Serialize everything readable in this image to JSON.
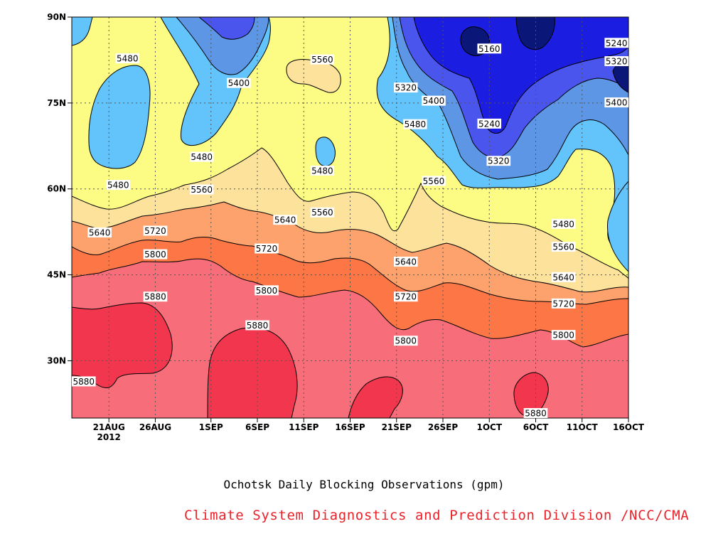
{
  "chart_data": {
    "type": "heatmap",
    "title": "Ochotsk Daily Blocking Observations (gpm)",
    "source": "Climate System Diagnostics and Prediction Division /NCC/CMA",
    "x_ticks": [
      "21AUG",
      "26AUG",
      "1SEP",
      "6SEP",
      "11SEP",
      "16SEP",
      "21SEP",
      "26SEP",
      "1OCT",
      "6OCT",
      "11OCT",
      "16OCT"
    ],
    "x_year": "2012",
    "y_ticks": [
      "30N",
      "45N",
      "60N",
      "75N",
      "90N"
    ],
    "x_range": [
      "2012-08-17",
      "2012-10-16"
    ],
    "y_range": [
      20,
      90
    ],
    "grid": true,
    "levels": [
      5160,
      5240,
      5320,
      5400,
      5480,
      5560,
      5640,
      5720,
      5800,
      5880
    ],
    "level_colors": {
      "below5160": "#0a1678",
      "5160": "#1b1de0",
      "5240": "#4a55ee",
      "5320": "#5e96e6",
      "5400": "#63c3fb",
      "5480": "#fcfc85",
      "5560": "#fde29c",
      "5640": "#fda26c",
      "5720": "#fc7745",
      "5800": "#f76e7a",
      "5880": "#f2364e"
    },
    "contour_labels": [
      {
        "text": "5160",
        "date": "2012-10-01",
        "lat": 84.5
      },
      {
        "text": "5240",
        "date": "2012-10-16",
        "lat": 85.5
      },
      {
        "text": "5240",
        "date": "2012-10-01",
        "lat": 71.4
      },
      {
        "text": "5320",
        "date": "2012-10-15",
        "lat": 82.3
      },
      {
        "text": "5320",
        "date": "2012-09-22",
        "lat": 77.7
      },
      {
        "text": "5320",
        "date": "2012-10-02",
        "lat": 64.9
      },
      {
        "text": "5400",
        "date": "2012-09-04",
        "lat": 78.5
      },
      {
        "text": "5400",
        "date": "2012-09-25",
        "lat": 75.4
      },
      {
        "text": "5400",
        "date": "2012-10-15",
        "lat": 75.1
      },
      {
        "text": "5480",
        "date": "2012-08-23",
        "lat": 82.8
      },
      {
        "text": "5480",
        "date": "2012-08-31",
        "lat": 65.6
      },
      {
        "text": "5480",
        "date": "2012-08-22",
        "lat": 60.7
      },
      {
        "text": "5480",
        "date": "2012-09-13",
        "lat": 63.2
      },
      {
        "text": "5480",
        "date": "2012-09-23",
        "lat": 71.3
      },
      {
        "text": "5480",
        "date": "2012-10-09",
        "lat": 53.9
      },
      {
        "text": "5560",
        "date": "2012-09-13",
        "lat": 82.6
      },
      {
        "text": "5560",
        "date": "2012-08-31",
        "lat": 59.9
      },
      {
        "text": "5560",
        "date": "2012-09-13",
        "lat": 55.9
      },
      {
        "text": "5560",
        "date": "2012-09-25",
        "lat": 61.4
      },
      {
        "text": "5560",
        "date": "2012-10-09",
        "lat": 49.9
      },
      {
        "text": "5640",
        "date": "2012-08-20",
        "lat": 52.4
      },
      {
        "text": "5640",
        "date": "2012-09-09",
        "lat": 54.6
      },
      {
        "text": "5640",
        "date": "2012-09-22",
        "lat": 47.3
      },
      {
        "text": "5640",
        "date": "2012-10-09",
        "lat": 44.6
      },
      {
        "text": "5720",
        "date": "2012-08-26",
        "lat": 52.7
      },
      {
        "text": "5720",
        "date": "2012-09-07",
        "lat": 49.6
      },
      {
        "text": "5720",
        "date": "2012-09-22",
        "lat": 41.2
      },
      {
        "text": "5720",
        "date": "2012-10-09",
        "lat": 40.0
      },
      {
        "text": "5800",
        "date": "2012-08-26",
        "lat": 48.6
      },
      {
        "text": "5800",
        "date": "2012-09-07",
        "lat": 42.3
      },
      {
        "text": "5800",
        "date": "2012-09-22",
        "lat": 33.5
      },
      {
        "text": "5800",
        "date": "2012-10-09",
        "lat": 34.5
      },
      {
        "text": "5880",
        "date": "2012-08-26",
        "lat": 41.2
      },
      {
        "text": "5880",
        "date": "2012-09-06",
        "lat": 36.2
      },
      {
        "text": "5880",
        "date": "2012-08-17",
        "lat": 26.4
      },
      {
        "text": "5880",
        "date": "2012-10-06",
        "lat": 20.4
      }
    ]
  }
}
